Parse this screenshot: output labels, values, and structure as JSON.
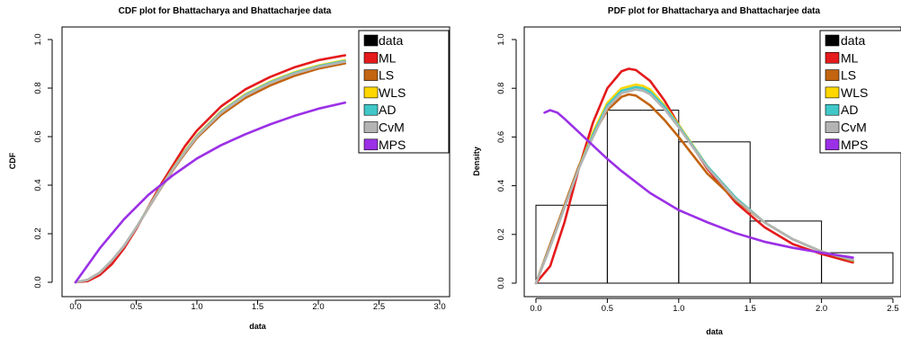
{
  "colors": {
    "data": "#000000",
    "ML": "#e41a1c",
    "LS": "#c26410",
    "WLS": "#ffd700",
    "AD": "#40c8c8",
    "CvM": "#b4b4b4",
    "MPS": "#9b30e6"
  },
  "chart_data": [
    {
      "type": "line",
      "title": "CDF plot for Bhattacharya and Bhattacharjee data",
      "xlabel": "data",
      "ylabel": "CDF",
      "xlim": [
        0,
        3
      ],
      "ylim": [
        0,
        1
      ],
      "x_ticks": [
        "0.0",
        "0.5",
        "1.0",
        "1.5",
        "2.0",
        "2.5",
        "3.0"
      ],
      "y_ticks": [
        "0.0",
        "0.2",
        "0.4",
        "0.6",
        "0.8",
        "1.0"
      ],
      "grid": false,
      "legend": {
        "position": "top-right",
        "entries": [
          "data",
          "ML",
          "LS",
          "WLS",
          "AD",
          "CvM",
          "MPS"
        ]
      },
      "series": [
        {
          "name": "ML",
          "x": [
            0.0,
            0.1,
            0.2,
            0.3,
            0.4,
            0.5,
            0.6,
            0.7,
            0.8,
            0.9,
            1.0,
            1.2,
            1.4,
            1.6,
            1.8,
            2.0,
            2.22
          ],
          "y": [
            0.0,
            0.005,
            0.03,
            0.075,
            0.14,
            0.22,
            0.31,
            0.4,
            0.48,
            0.56,
            0.625,
            0.725,
            0.795,
            0.845,
            0.885,
            0.915,
            0.935
          ]
        },
        {
          "name": "LS",
          "x": [
            0.0,
            0.1,
            0.2,
            0.3,
            0.4,
            0.5,
            0.6,
            0.7,
            0.8,
            0.9,
            1.0,
            1.2,
            1.4,
            1.6,
            1.8,
            2.0,
            2.22
          ],
          "y": [
            0.0,
            0.01,
            0.04,
            0.09,
            0.15,
            0.225,
            0.305,
            0.385,
            0.46,
            0.53,
            0.595,
            0.69,
            0.76,
            0.81,
            0.85,
            0.88,
            0.902
          ]
        },
        {
          "name": "WLS",
          "x": [
            0.0,
            0.1,
            0.2,
            0.3,
            0.4,
            0.5,
            0.6,
            0.7,
            0.8,
            0.9,
            1.0,
            1.2,
            1.4,
            1.6,
            1.8,
            2.0,
            2.22
          ],
          "y": [
            0.0,
            0.01,
            0.04,
            0.09,
            0.15,
            0.225,
            0.308,
            0.39,
            0.467,
            0.54,
            0.605,
            0.705,
            0.775,
            0.826,
            0.865,
            0.893,
            0.915
          ]
        },
        {
          "name": "AD",
          "x": [
            0.0,
            0.1,
            0.2,
            0.3,
            0.4,
            0.5,
            0.6,
            0.7,
            0.8,
            0.9,
            1.0,
            1.2,
            1.4,
            1.6,
            1.8,
            2.0,
            2.22
          ],
          "y": [
            0.0,
            0.01,
            0.04,
            0.09,
            0.15,
            0.225,
            0.307,
            0.388,
            0.465,
            0.537,
            0.602,
            0.702,
            0.772,
            0.823,
            0.862,
            0.89,
            0.912
          ]
        },
        {
          "name": "CvM",
          "x": [
            0.0,
            0.1,
            0.2,
            0.3,
            0.4,
            0.5,
            0.6,
            0.7,
            0.8,
            0.9,
            1.0,
            1.2,
            1.4,
            1.6,
            1.8,
            2.0,
            2.22
          ],
          "y": [
            0.0,
            0.01,
            0.04,
            0.09,
            0.15,
            0.225,
            0.306,
            0.387,
            0.463,
            0.535,
            0.6,
            0.699,
            0.769,
            0.82,
            0.859,
            0.887,
            0.909
          ]
        },
        {
          "name": "MPS",
          "x": [
            0.0,
            0.1,
            0.2,
            0.3,
            0.4,
            0.5,
            0.6,
            0.7,
            0.8,
            0.9,
            1.0,
            1.2,
            1.4,
            1.6,
            1.8,
            2.0,
            2.22
          ],
          "y": [
            0.0,
            0.07,
            0.14,
            0.2,
            0.26,
            0.31,
            0.36,
            0.4,
            0.44,
            0.475,
            0.51,
            0.565,
            0.61,
            0.65,
            0.685,
            0.715,
            0.74
          ]
        }
      ]
    },
    {
      "type": "line",
      "title": "PDF plot for Bhattacharya and Bhattacharjee data",
      "xlabel": "data",
      "ylabel": "Density",
      "xlim": [
        0,
        2.5
      ],
      "ylim": [
        0,
        1
      ],
      "x_ticks": [
        "0.0",
        "0.5",
        "1.0",
        "1.5",
        "2.0",
        "2.5"
      ],
      "y_ticks": [
        "0.0",
        "0.2",
        "0.4",
        "0.6",
        "0.8",
        "1.0"
      ],
      "grid": false,
      "legend": {
        "position": "top-right",
        "entries": [
          "data",
          "ML",
          "LS",
          "WLS",
          "AD",
          "CvM",
          "MPS"
        ]
      },
      "histogram": {
        "bins": [
          [
            0,
            0.5
          ],
          [
            0.5,
            1.0
          ],
          [
            1.0,
            1.5
          ],
          [
            1.5,
            2.0
          ],
          [
            2.0,
            2.5
          ]
        ],
        "density": [
          0.32,
          0.71,
          0.58,
          0.255,
          0.125
        ]
      },
      "series": [
        {
          "name": "ML",
          "x": [
            0.0,
            0.1,
            0.2,
            0.3,
            0.4,
            0.5,
            0.6,
            0.65,
            0.7,
            0.8,
            0.9,
            1.0,
            1.2,
            1.4,
            1.6,
            1.8,
            2.0,
            2.22
          ],
          "y": [
            0.0,
            0.07,
            0.25,
            0.47,
            0.66,
            0.8,
            0.87,
            0.88,
            0.875,
            0.83,
            0.75,
            0.65,
            0.47,
            0.33,
            0.23,
            0.16,
            0.12,
            0.085
          ]
        },
        {
          "name": "LS",
          "x": [
            0.0,
            0.1,
            0.2,
            0.3,
            0.4,
            0.5,
            0.6,
            0.65,
            0.7,
            0.8,
            0.9,
            1.0,
            1.2,
            1.4,
            1.6,
            1.8,
            2.0,
            2.22
          ],
          "y": [
            0.0,
            0.16,
            0.32,
            0.48,
            0.61,
            0.71,
            0.765,
            0.775,
            0.77,
            0.73,
            0.67,
            0.6,
            0.45,
            0.34,
            0.25,
            0.18,
            0.13,
            0.09
          ]
        },
        {
          "name": "WLS",
          "x": [
            0.0,
            0.1,
            0.2,
            0.3,
            0.4,
            0.5,
            0.6,
            0.7,
            0.75,
            0.8,
            0.9,
            1.0,
            1.2,
            1.4,
            1.6,
            1.8,
            2.0,
            2.22
          ],
          "y": [
            0.0,
            0.15,
            0.31,
            0.47,
            0.62,
            0.74,
            0.8,
            0.815,
            0.81,
            0.795,
            0.73,
            0.65,
            0.48,
            0.35,
            0.25,
            0.18,
            0.13,
            0.095
          ]
        },
        {
          "name": "AD",
          "x": [
            0.0,
            0.1,
            0.2,
            0.3,
            0.4,
            0.5,
            0.6,
            0.7,
            0.75,
            0.8,
            0.9,
            1.0,
            1.2,
            1.4,
            1.6,
            1.8,
            2.0,
            2.22
          ],
          "y": [
            0.0,
            0.15,
            0.31,
            0.47,
            0.61,
            0.73,
            0.79,
            0.805,
            0.8,
            0.785,
            0.725,
            0.645,
            0.48,
            0.35,
            0.25,
            0.18,
            0.13,
            0.095
          ]
        },
        {
          "name": "CvM",
          "x": [
            0.0,
            0.1,
            0.2,
            0.3,
            0.4,
            0.5,
            0.6,
            0.7,
            0.75,
            0.8,
            0.9,
            1.0,
            1.2,
            1.4,
            1.6,
            1.8,
            2.0,
            2.22
          ],
          "y": [
            0.0,
            0.15,
            0.31,
            0.47,
            0.6,
            0.72,
            0.78,
            0.795,
            0.79,
            0.775,
            0.715,
            0.64,
            0.475,
            0.345,
            0.25,
            0.18,
            0.13,
            0.095
          ]
        },
        {
          "name": "MPS",
          "x": [
            0.06,
            0.1,
            0.15,
            0.2,
            0.3,
            0.4,
            0.5,
            0.6,
            0.8,
            1.0,
            1.2,
            1.4,
            1.6,
            1.8,
            2.0,
            2.22
          ],
          "y": [
            0.7,
            0.71,
            0.7,
            0.675,
            0.62,
            0.565,
            0.51,
            0.46,
            0.37,
            0.3,
            0.25,
            0.205,
            0.17,
            0.145,
            0.125,
            0.105
          ]
        }
      ]
    }
  ]
}
